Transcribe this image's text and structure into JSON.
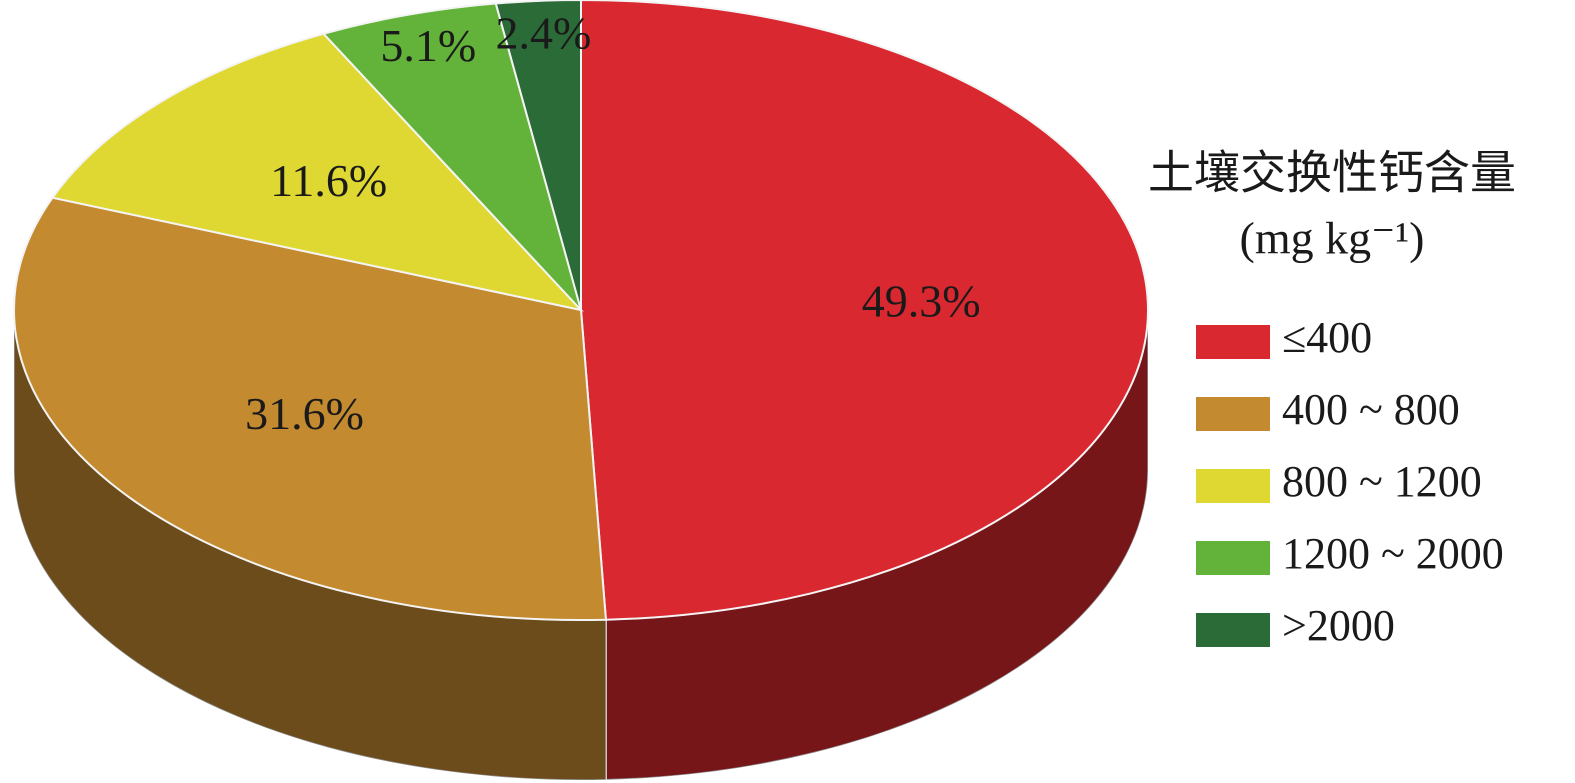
{
  "chart_data": {
    "type": "pie",
    "legend_title": "土壤交换性钙含量",
    "legend_subtitle": "(mg kg⁻¹)",
    "categories": [
      "≤400",
      "400 ~ 800",
      "800 ~ 1200",
      "1200 ~ 2000",
      ">2000"
    ],
    "values": [
      49.3,
      31.6,
      11.6,
      5.1,
      2.4
    ],
    "value_labels": [
      "49.3%",
      "31.6%",
      "11.6%",
      "5.1%",
      "2.4%"
    ],
    "colors": [
      "#d9282f",
      "#c48a30",
      "#e0d832",
      "#63b33a",
      "#2b6b37"
    ],
    "legend": "right"
  }
}
